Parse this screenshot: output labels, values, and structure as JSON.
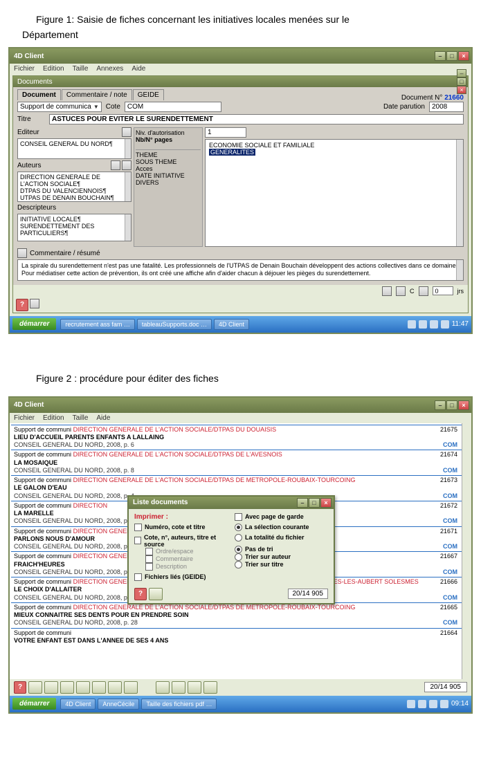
{
  "figure1": {
    "title": "Figure 1: Saisie de fiches concernant les initiatives locales menées sur le",
    "subtitle": "Département",
    "app_title": "4D Client",
    "menus": [
      "Fichier",
      "Edition",
      "Taille",
      "Annexes",
      "Aide"
    ],
    "inner_title": "Documents",
    "tabs": [
      "Document",
      "Commentaire / note",
      "GEIDE"
    ],
    "doc_num_label": "Document N°",
    "doc_num": "21660",
    "support_label": "Support de communica",
    "cote_label": "Cote",
    "cote_value": "COM",
    "date_label": "Date parution",
    "date_value": "2008",
    "titre_label": "Titre",
    "titre_value": "ASTUCES POUR EVITER LE SURENDETTEMENT",
    "editor_label": "Editeur",
    "editor_value": "CONSEIL GENERAL DU NORD¶",
    "authors_label": "Auteurs",
    "authors": [
      "DIRECTION GENERALE DE",
      "L'ACTION SOCIALE¶",
      "DTPAS DU VALENCIENNOIS¶",
      "UTPAS DE DENAIN BOUCHAIN¶"
    ],
    "desc_label": "Descripteurs",
    "descriptors": [
      "INITIATIVE LOCALE¶",
      "SURENDETTEMENT DES",
      "PARTICULIERS¶"
    ],
    "mid_labels": {
      "auth": "Niv. d'autorisation",
      "pages": "Nb/N° pages",
      "theme": "THEME",
      "soustheme": "SOUS THEME",
      "acces": "Acces",
      "dateinit": "DATE INITIATIVE",
      "divers": "DIVERS"
    },
    "pages_value": "1",
    "cat1": "ECONOMIE SOCIALE ET FAMILIALE",
    "cat2": "GENERALITES",
    "comment_label": "Commentaire / résumé",
    "comment_text": "La spirale du surendettement n'est pas une fatalité. Les professionnels de l'UTPAS de Denain Bouchain développent des actions collectives dans ce domaine. Pour médiatiser cette action de prévention, ils ont créé une affiche afin d'aider chacun à déjouer les pièges du surendettement.",
    "jrs_val": "0",
    "jrs_label": "jrs",
    "taskbar": {
      "start": "démarrer",
      "items": [
        "recrutement ass fam …",
        "tableauSupports.doc …",
        "4D Client"
      ],
      "clock": "11:47"
    }
  },
  "figure2": {
    "title": "Figure 2 : procédure pour éditer des fiches",
    "app_title": "4D Client",
    "menus": [
      "Fichier",
      "Edition",
      "Taille",
      "Aide"
    ],
    "rows": [
      {
        "prefix": "Support de communi",
        "red": "DIRECTION GENERALE DE L'ACTION SOCIALE/DTPAS DU DOUAISIS",
        "bold": "LIEU D'ACCUEIL PARENTS ENFANTS A LALLAING",
        "sub": "CONSEIL GENERAL DU NORD, 2008, p. 6",
        "id": "21675",
        "tag": "COM"
      },
      {
        "prefix": "Support de communi",
        "red": "DIRECTION GENERALE DE L'ACTION SOCIALE/DTPAS DE L'AVESNOIS",
        "bold": "LA MOSAIQUE",
        "sub": "CONSEIL GENERAL DU NORD, 2008, p. 8",
        "id": "21674",
        "tag": "COM"
      },
      {
        "prefix": "Support de communi",
        "red": "DIRECTION GENERALE DE L'ACTION SOCIALE/DTPAS DE METROPOLE-ROUBAIX-TOURCOING",
        "bold": "LE GALON D'EAU",
        "sub": "CONSEIL GENERAL DU NORD, 2008, p. 4",
        "id": "21673",
        "tag": "COM"
      },
      {
        "prefix": "Support de communi",
        "red": "DIRECTION",
        "bold": "LA MARELLE",
        "sub": "CONSEIL GENERAL DU NORD, 2008, p. 4",
        "id": "21672",
        "tag": "COM"
      },
      {
        "prefix": "Support de communi",
        "red": "DIRECTION GENERA",
        "bold": "PARLONS NOUS D'AMOUR",
        "sub": "CONSEIL GENERAL DU NORD, 2008, p. 5",
        "id": "21671",
        "tag": "COM"
      },
      {
        "prefix": "Support de communi",
        "red": "DIRECTION GENERA",
        "bold": "FRAICH'HEURES",
        "sub": "CONSEIL GENERAL DU NORD, 2008, p. 1",
        "id": "21667",
        "tag": "COM"
      },
      {
        "prefix": "Support de communi",
        "red": "DIRECTION GENERALE DE L'ACTION SOCIALE/DTPAS DU CAMBRESIS/UTPAS D'AVESNES-LES-AUBERT SOLESMES",
        "bold": "LE CHOIX D'ALLAITER",
        "sub": "CONSEIL GENERAL DU NORD, 2008, p. 4",
        "id": "21666",
        "tag": "COM"
      },
      {
        "prefix": "Support de communi",
        "red": "DIRECTION GENERALE DE L'ACTION SOCIALE/DTPAS DE METROPOLE-ROUBAIX-TOURCOING",
        "bold": "MIEUX CONNAITRE SES DENTS POUR EN PRENDRE SOIN",
        "sub": "CONSEIL GENERAL DU NORD, 2008, p. 28",
        "id": "21665",
        "tag": "COM"
      },
      {
        "prefix": "Support de communi",
        "red": "",
        "bold": "VOTRE ENFANT EST DANS L'ANNEE DE SES 4 ANS",
        "sub": "",
        "id": "21664",
        "tag": ""
      }
    ],
    "dialog": {
      "title": "Liste documents",
      "imprimer": "Imprimer :",
      "avec_page": "Avec page de garde",
      "opt_numero": "Numéro, cote et titre",
      "opt_cote": "Cote, n°, auteurs, titre et source",
      "sub1": "Ordre/espace",
      "sub2": "Commentaire",
      "sub3": "Description",
      "opt_fichiers": "Fichiers liés (GEIDE)",
      "radio_sel": "La sélection courante",
      "radio_tot": "La totalité du fichier",
      "tri_pas": "Pas de tri",
      "tri_auteur": "Trier sur auteur",
      "tri_titre": "Trier sur titre",
      "counter": "20/14 905"
    },
    "counter": "20/14 905",
    "taskbar": {
      "start": "démarrer",
      "items": [
        "4D Client",
        "AnneCécile",
        "Taille des fichiers pdf …"
      ],
      "clock": "09:14"
    }
  }
}
